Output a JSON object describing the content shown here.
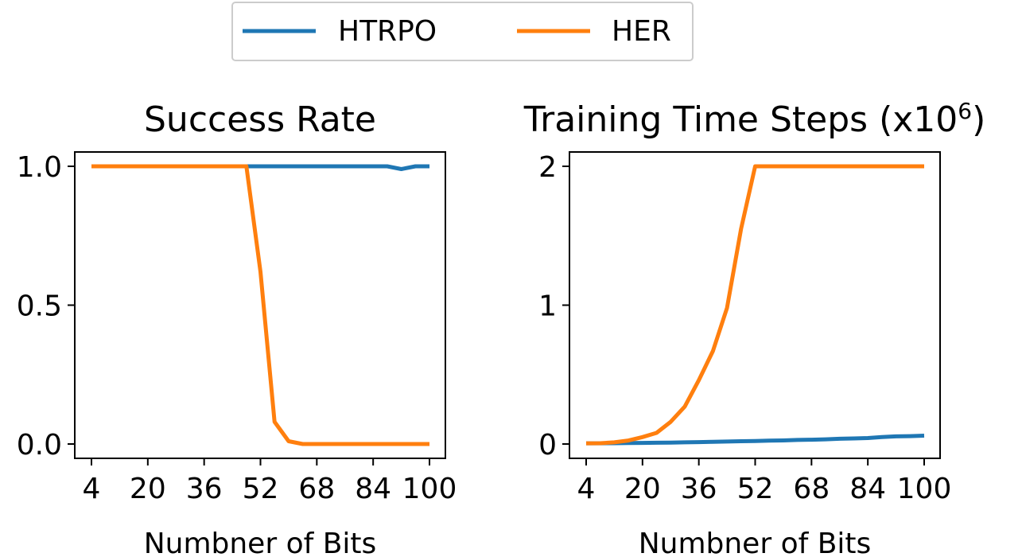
{
  "legend": {
    "entries": [
      {
        "name": "HTRPO",
        "color": "#1f77b4"
      },
      {
        "name": "HER",
        "color": "#ff7f0e"
      }
    ]
  },
  "chart_data": [
    {
      "type": "line",
      "title": "Success Rate",
      "xlabel": "Numbner of Bits",
      "ylabel": "",
      "xlim": [
        4,
        100
      ],
      "ylim": [
        0,
        1
      ],
      "xticks": [
        "4",
        "20",
        "36",
        "52",
        "68",
        "84",
        "100"
      ],
      "yticks": [
        "0.0",
        "0.5",
        "1.0"
      ],
      "x": [
        4,
        8,
        12,
        16,
        20,
        24,
        28,
        32,
        36,
        40,
        44,
        48,
        52,
        56,
        60,
        64,
        68,
        72,
        76,
        80,
        84,
        88,
        92,
        96,
        100
      ],
      "series": [
        {
          "name": "HTRPO",
          "color": "#1f77b4",
          "values": [
            1,
            1,
            1,
            1,
            1,
            1,
            1,
            1,
            1,
            1,
            1,
            1,
            1,
            1,
            1,
            1,
            1,
            1,
            1,
            1,
            1,
            1,
            0.99,
            1,
            1
          ]
        },
        {
          "name": "HER",
          "color": "#ff7f0e",
          "values": [
            1,
            1,
            1,
            1,
            1,
            1,
            1,
            1,
            1,
            1,
            1,
            1,
            0.62,
            0.08,
            0.01,
            0,
            0,
            0,
            0,
            0,
            0,
            0,
            0,
            0,
            0
          ]
        }
      ]
    },
    {
      "type": "line",
      "title": "Training Time Steps (x10",
      "title_sup": "6",
      "title_end": ")",
      "xlabel": "Numbner of Bits",
      "ylabel": "",
      "xlim": [
        4,
        100
      ],
      "ylim": [
        0,
        2
      ],
      "xticks": [
        "4",
        "20",
        "36",
        "52",
        "68",
        "84",
        "100"
      ],
      "yticks": [
        "0",
        "1",
        "2"
      ],
      "x": [
        4,
        8,
        12,
        16,
        20,
        24,
        28,
        32,
        36,
        40,
        44,
        48,
        52,
        56,
        60,
        64,
        68,
        72,
        76,
        80,
        84,
        88,
        92,
        96,
        100
      ],
      "series": [
        {
          "name": "HTRPO",
          "color": "#1f77b4",
          "values": [
            0.005,
            0.005,
            0.006,
            0.007,
            0.008,
            0.009,
            0.01,
            0.012,
            0.014,
            0.016,
            0.018,
            0.02,
            0.022,
            0.024,
            0.026,
            0.029,
            0.031,
            0.034,
            0.038,
            0.04,
            0.043,
            0.05,
            0.055,
            0.057,
            0.06
          ]
        },
        {
          "name": "HER",
          "color": "#ff7f0e",
          "values": [
            0.005,
            0.006,
            0.012,
            0.025,
            0.05,
            0.08,
            0.16,
            0.27,
            0.46,
            0.67,
            0.98,
            1.55,
            2,
            2,
            2,
            2,
            2,
            2,
            2,
            2,
            2,
            2,
            2,
            2,
            2
          ]
        }
      ]
    }
  ]
}
